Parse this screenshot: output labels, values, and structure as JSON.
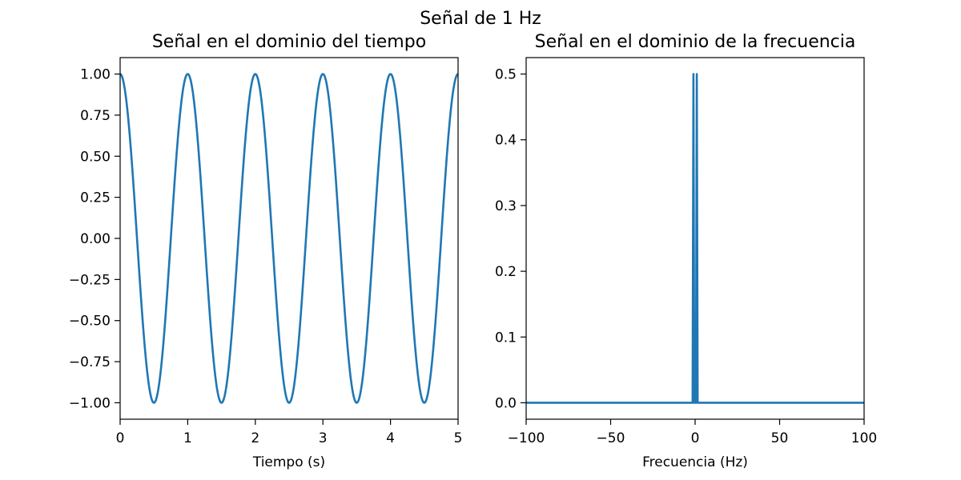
{
  "figure": {
    "suptitle": "Señal de 1 Hz"
  },
  "chart_data": [
    {
      "type": "line",
      "title": "Señal en el dominio del tiempo",
      "xlabel": "Tiempo (s)",
      "ylabel": "",
      "xlim": [
        0,
        5
      ],
      "ylim": [
        -1.1,
        1.1
      ],
      "xticks": [
        0,
        1,
        2,
        3,
        4,
        5
      ],
      "xtick_labels": [
        "0",
        "1",
        "2",
        "3",
        "4",
        "5"
      ],
      "yticks": [
        -1.0,
        -0.75,
        -0.5,
        -0.25,
        0.0,
        0.25,
        0.5,
        0.75,
        1.0
      ],
      "ytick_labels": [
        "−1.00",
        "−0.75",
        "−0.50",
        "−0.25",
        "0.00",
        "0.25",
        "0.50",
        "0.75",
        "1.00"
      ],
      "grid": false,
      "series": [
        {
          "color": "#1f77b4",
          "function": "cos(2*pi*1*t)",
          "frequency_hz": 1,
          "amplitude": 1,
          "x_start": 0,
          "x_end": 5
        }
      ]
    },
    {
      "type": "line",
      "title": "Señal en el dominio de la frecuencia",
      "xlabel": "Frecuencia (Hz)",
      "ylabel": "",
      "xlim": [
        -100,
        100
      ],
      "ylim": [
        -0.025,
        0.525
      ],
      "xticks": [
        -100,
        -50,
        0,
        50,
        100
      ],
      "xtick_labels": [
        "−100",
        "−50",
        "0",
        "50",
        "100"
      ],
      "yticks": [
        0.0,
        0.1,
        0.2,
        0.3,
        0.4,
        0.5
      ],
      "ytick_labels": [
        "0.0",
        "0.1",
        "0.2",
        "0.3",
        "0.4",
        "0.5"
      ],
      "grid": false,
      "series": [
        {
          "color": "#1f77b4",
          "x": [
            -100,
            -1.5,
            -1,
            -0.5,
            0,
            0.5,
            1,
            1.5,
            100
          ],
          "y": [
            0,
            0,
            0.5,
            0,
            0,
            0,
            0.5,
            0,
            0
          ]
        }
      ]
    }
  ]
}
